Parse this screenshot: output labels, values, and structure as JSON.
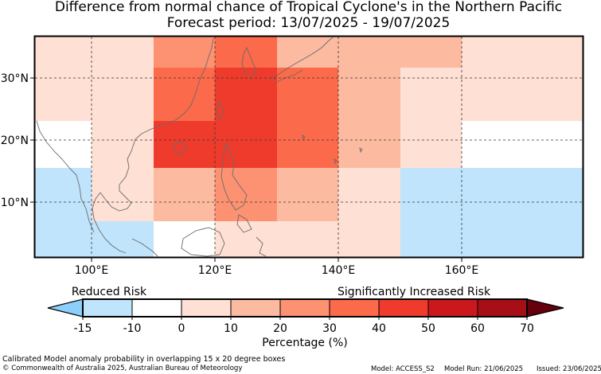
{
  "title": {
    "line1": "Difference from normal chance of Tropical Cyclone's in the Northern Pacific",
    "line2": "Forecast period: 13/07/2025 - 19/07/2025"
  },
  "map": {
    "lon_labels": [
      "100°E",
      "120°E",
      "140°E",
      "160°E"
    ],
    "lat_labels": [
      "30°N",
      "20°N",
      "10°N"
    ],
    "cells": [
      {
        "row": 0,
        "col": 0,
        "value": 5
      },
      {
        "row": 0,
        "col": 1,
        "value": 5
      },
      {
        "row": 0,
        "col": 2,
        "value": 25
      },
      {
        "row": 0,
        "col": 3,
        "value": 35
      },
      {
        "row": 0,
        "col": 4,
        "value": 15
      },
      {
        "row": 0,
        "col": 5,
        "value": 15
      },
      {
        "row": 0,
        "col": 6,
        "value": 15
      },
      {
        "row": 0,
        "col": 7,
        "value": 5
      },
      {
        "row": 0,
        "col": 8,
        "value": 0
      },
      {
        "row": 1,
        "col": 0,
        "value": 0
      },
      {
        "row": 1,
        "col": 1,
        "value": 5
      },
      {
        "row": 1,
        "col": 2,
        "value": 35
      },
      {
        "row": 1,
        "col": 3,
        "value": 45
      },
      {
        "row": 1,
        "col": 4,
        "value": 35
      },
      {
        "row": 1,
        "col": 5,
        "value": 15
      },
      {
        "row": 1,
        "col": 6,
        "value": 5
      },
      {
        "row": 1,
        "col": 7,
        "value": 0
      },
      {
        "row": 1,
        "col": 8,
        "value": 0
      },
      {
        "row": 2,
        "col": 0,
        "value": -5
      },
      {
        "row": 2,
        "col": 1,
        "value": 5
      },
      {
        "row": 2,
        "col": 2,
        "value": 45
      },
      {
        "row": 2,
        "col": 3,
        "value": 45
      },
      {
        "row": 2,
        "col": 4,
        "value": 35
      },
      {
        "row": 2,
        "col": 5,
        "value": 15
      },
      {
        "row": 2,
        "col": 6,
        "value": 0
      },
      {
        "row": 2,
        "col": 7,
        "value": -5
      },
      {
        "row": 2,
        "col": 8,
        "value": -5
      },
      {
        "row": 3,
        "col": 0,
        "value": -15
      },
      {
        "row": 3,
        "col": 1,
        "value": 0
      },
      {
        "row": 3,
        "col": 2,
        "value": 15
      },
      {
        "row": 3,
        "col": 3,
        "value": 25
      },
      {
        "row": 3,
        "col": 4,
        "value": 15
      },
      {
        "row": 3,
        "col": 5,
        "value": 5
      },
      {
        "row": 3,
        "col": 6,
        "value": -15
      },
      {
        "row": 3,
        "col": 7,
        "value": -15
      },
      {
        "row": 3,
        "col": 8,
        "value": -15
      },
      {
        "row": 4,
        "col": 0,
        "value": -15
      },
      {
        "row": 4,
        "col": 1,
        "value": -15
      },
      {
        "row": 4,
        "col": 2,
        "value": -5
      },
      {
        "row": 4,
        "col": 3,
        "value": 0
      },
      {
        "row": 4,
        "col": 4,
        "value": 5
      },
      {
        "row": 4,
        "col": 5,
        "value": 0
      },
      {
        "row": 4,
        "col": 6,
        "value": -15
      },
      {
        "row": 4,
        "col": 7,
        "value": -15
      },
      {
        "row": 4,
        "col": 8,
        "value": -15
      }
    ]
  },
  "colorbar": {
    "left_label": "Reduced Risk",
    "right_label": "Significantly Increased Risk",
    "ticks": [
      "-15",
      "-10",
      "0",
      "10",
      "20",
      "30",
      "40",
      "50",
      "60",
      "70"
    ],
    "colors": [
      "#8ccffb",
      "#bfe4fc",
      "#ffffff",
      "#fee0d4",
      "#fcbba1",
      "#fc9272",
      "#fb6a4a",
      "#ef3b2c",
      "#cb181d",
      "#a50f15",
      "#67000d"
    ],
    "xlabel": "Percentage (%)"
  },
  "footer": {
    "line1": "Calibrated Model anomaly probability in overlapping 15 x 20 degree boxes",
    "line2": "© Commonwealth of Australia 2025, Australian Bureau of Meteorology",
    "model": "Model: ACCESS_S2",
    "run": "Model Run: 21/06/2025",
    "issued": "Issued: 23/06/2025"
  }
}
